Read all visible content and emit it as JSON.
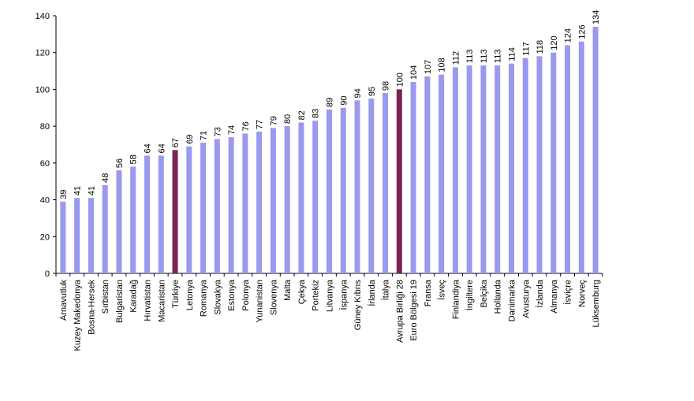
{
  "chart_data": {
    "type": "bar",
    "categories": [
      "Arnavutluk",
      "Kuzey Makedonya",
      "Bosna-Hersek",
      "Sırbistan",
      "Bulgaristan",
      "Karadağ",
      "Hırvatistan",
      "Macaristan",
      "Türkiye",
      "Letonya",
      "Romanya",
      "Slovakya",
      "Estonya",
      "Polonya",
      "Yunanistan",
      "Slovenya",
      "Malta",
      "Çekya",
      "Portekiz",
      "Litvanya",
      "İspanya",
      "Güney Kıbrıs",
      "İrlanda",
      "İtalya",
      "Avrupa Birliği 28",
      "Euro Bölgesi 19",
      "Fransa",
      "İsveç",
      "Finlandiya",
      "İngiltere",
      "Belçika",
      "Hollanda",
      "Danimarka",
      "Avusturya",
      "İzlanda",
      "Almanya",
      "İsviçre",
      "Norveç",
      "Lüksemburg"
    ],
    "values": [
      39,
      41,
      41,
      48,
      56,
      58,
      64,
      64,
      67,
      69,
      71,
      73,
      74,
      76,
      77,
      79,
      80,
      82,
      83,
      89,
      90,
      94,
      95,
      98,
      100,
      104,
      107,
      108,
      112,
      113,
      113,
      113,
      114,
      117,
      118,
      120,
      124,
      126,
      134
    ],
    "data_labels": [
      "39",
      "41",
      "41",
      "48",
      "56",
      "58",
      "64",
      "64",
      "67",
      "69",
      "71",
      "73",
      "74",
      "76",
      "77",
      "79",
      "80",
      "82",
      "83",
      "89",
      "90",
      "94",
      "95",
      "98",
      "100",
      "104",
      "107",
      "108",
      "112",
      "113",
      "113",
      "113",
      "114",
      "117",
      "118",
      "120",
      "124",
      "126",
      "134"
    ],
    "highlight_categories": [
      "Türkiye",
      "Avrupa Birliği 28"
    ],
    "ylim": [
      0,
      140
    ],
    "yticks": [
      0,
      20,
      40,
      60,
      80,
      100,
      120,
      140
    ],
    "ytick_labels": [
      "0",
      "20",
      "40",
      "60",
      "80",
      "100",
      "120",
      "140"
    ],
    "title": "",
    "xlabel": "",
    "ylabel": "",
    "grid": false,
    "legend": "none",
    "colors": {
      "bar": "#9999ee",
      "highlight": "#7b2452",
      "axis": "#000000"
    }
  }
}
